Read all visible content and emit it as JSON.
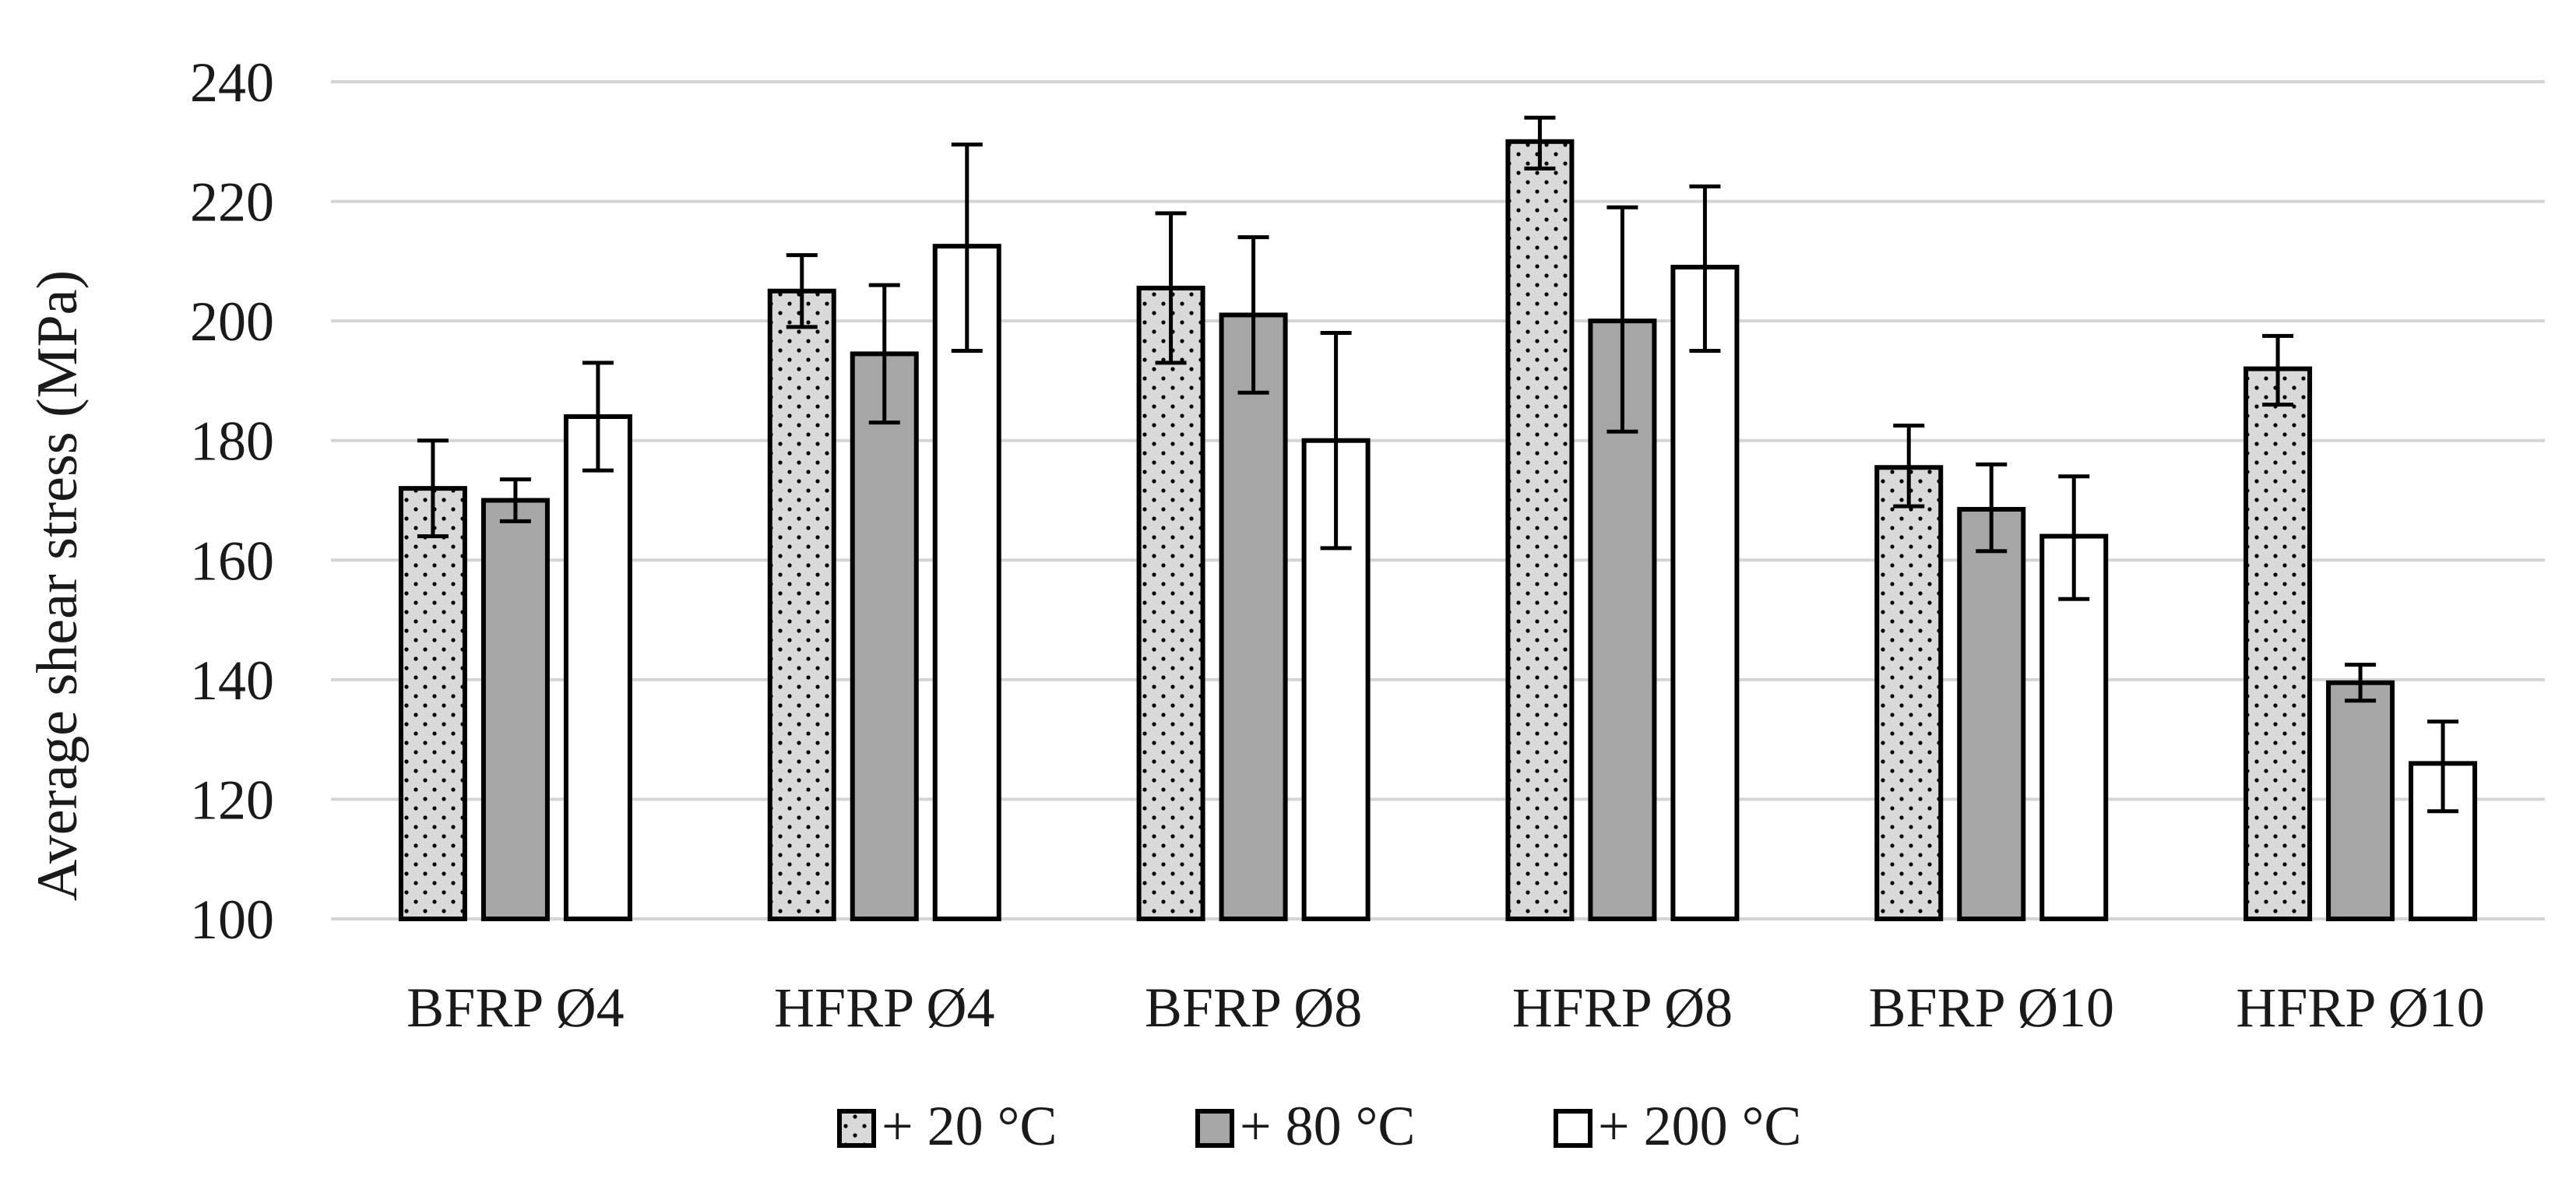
{
  "chart_data": {
    "type": "bar",
    "title": "",
    "xlabel": "",
    "ylabel": "Average shear stress (MPa)",
    "ylim": [
      100,
      240
    ],
    "yticks": [
      100,
      120,
      140,
      160,
      180,
      200,
      220,
      240
    ],
    "grid": true,
    "legend_position": "bottom-center",
    "categories": [
      "BFRP Ø4",
      "HFRP Ø4",
      "BFRP Ø8",
      "HFRP Ø8",
      "BFRP Ø10",
      "HFRP Ø10"
    ],
    "series": [
      {
        "name": "+ 20 °C",
        "fill": "#d9d9d9",
        "pattern": "dots",
        "values": [
          172,
          205,
          205.5,
          230,
          175.5,
          192
        ],
        "error_low": [
          164,
          199,
          193,
          225.5,
          169,
          186
        ],
        "error_high": [
          180,
          211,
          218,
          234,
          182.5,
          197.5
        ]
      },
      {
        "name": "+ 80 °C",
        "fill": "#a6a6a6",
        "pattern": "none",
        "values": [
          170,
          194.5,
          201,
          200,
          168.5,
          139.5
        ],
        "error_low": [
          166.5,
          183,
          188,
          181.5,
          161.5,
          136.5
        ],
        "error_high": [
          173.5,
          206,
          214,
          219,
          176,
          142.5
        ]
      },
      {
        "name": "+ 200 °C",
        "fill": "#ffffff",
        "pattern": "none",
        "values": [
          184,
          212.5,
          180,
          209,
          164,
          126
        ],
        "error_low": [
          175,
          195,
          162,
          195,
          153.5,
          118
        ],
        "error_high": [
          193,
          229.5,
          198,
          222.5,
          174,
          133
        ]
      }
    ]
  }
}
